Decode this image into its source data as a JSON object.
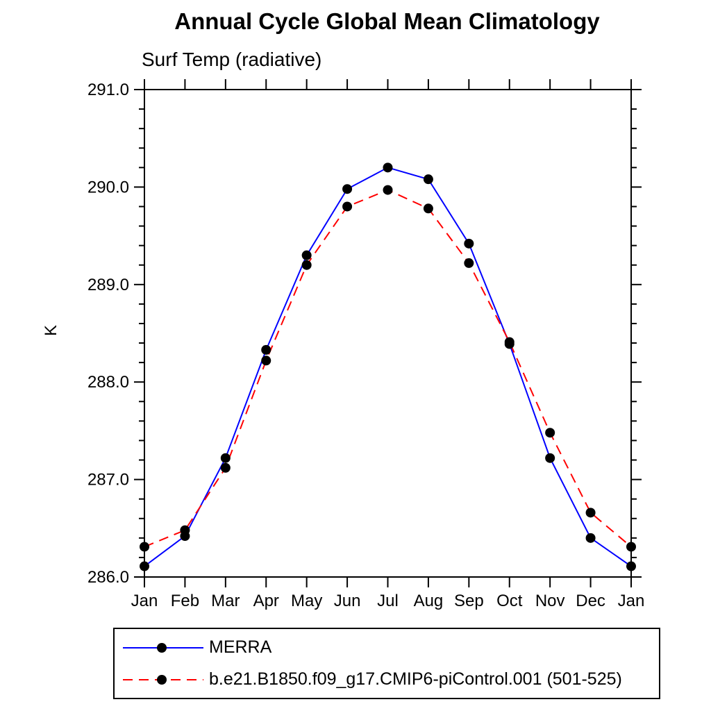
{
  "chart_data": {
    "type": "line",
    "title": "Annual Cycle Global Mean Climatology",
    "subtitle": "Surf Temp (radiative)",
    "ylabel": "K",
    "x_tick_labels": [
      "Jan",
      "Feb",
      "Mar",
      "Apr",
      "May",
      "Jun",
      "Jul",
      "Aug",
      "Sep",
      "Oct",
      "Nov",
      "Dec",
      "Jan"
    ],
    "y_tick_labels": [
      "286.0",
      "287.0",
      "288.0",
      "289.0",
      "290.0",
      "291.0"
    ],
    "ylim": [
      286.0,
      291.0
    ],
    "y_major_step": 1.0,
    "y_minor_step": 0.2,
    "grid": false,
    "legend_position": "bottom",
    "marker_color": "#000000",
    "axis_color": "#000000",
    "series": [
      {
        "name": "MERRA",
        "color": "#0000ff",
        "style": "solid",
        "values": [
          286.11,
          286.42,
          287.22,
          288.33,
          289.3,
          289.98,
          290.2,
          290.08,
          289.42,
          288.39,
          287.22,
          286.4,
          286.11
        ]
      },
      {
        "name": "b.e21.B1850.f09_g17.CMIP6-piControl.001 (501-525)",
        "color": "#ff0000",
        "style": "dashed",
        "values": [
          286.31,
          286.48,
          287.12,
          288.22,
          289.2,
          289.8,
          289.97,
          289.78,
          289.22,
          288.41,
          287.48,
          286.66,
          286.31
        ]
      }
    ]
  }
}
